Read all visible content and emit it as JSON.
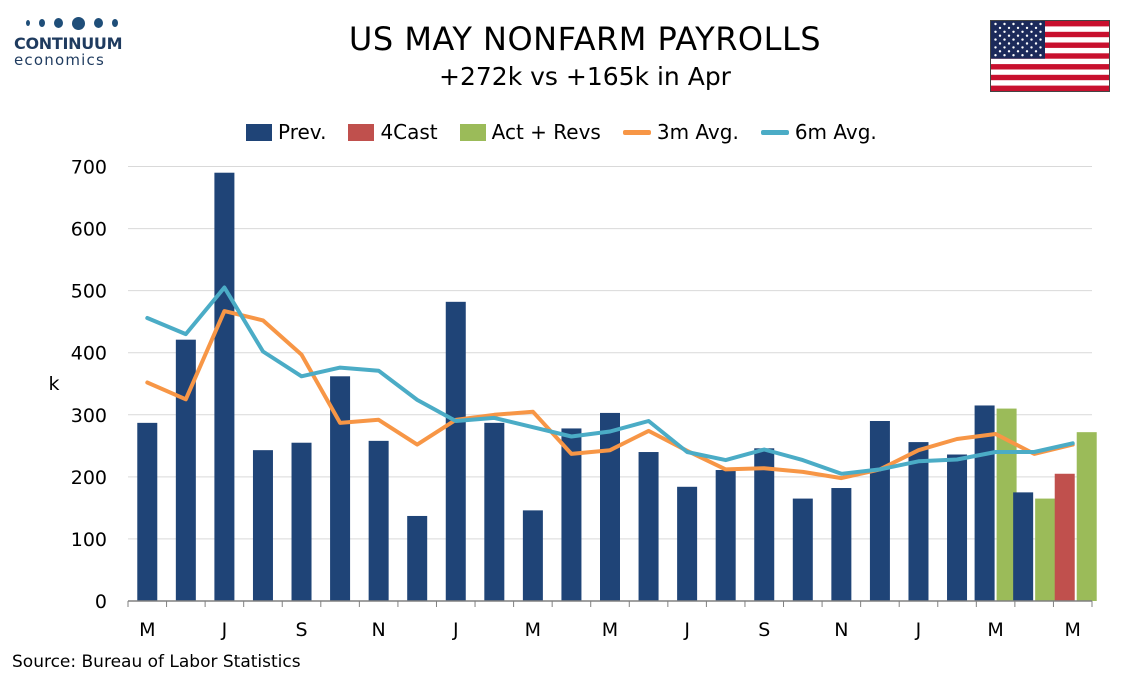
{
  "header": {
    "title": "US MAY NONFARM PAYROLLS",
    "subtitle": "+272k vs +165k in Apr"
  },
  "logo": {
    "name": "CONTINUUM",
    "sub": "economics",
    "color": "#1f3b5f"
  },
  "flag": {
    "icon": "us-flag-icon"
  },
  "source": "Source: Bureau of Labor Statistics",
  "colors": {
    "prev": "#1f4477",
    "forecast": "#c0504d",
    "actual": "#9bbb59",
    "avg3m": "#f79646",
    "avg6m": "#4bacc6",
    "grid": "#d9d9d9"
  },
  "chart_data": {
    "type": "bar",
    "ylabel": "k",
    "ylim": [
      0,
      700
    ],
    "yticks": [
      0,
      100,
      200,
      300,
      400,
      500,
      600,
      700
    ],
    "grid": true,
    "legend_placement": "top",
    "x_tick_labels": [
      "M",
      "J",
      "S",
      "N",
      "J",
      "M",
      "M",
      "J",
      "S",
      "N",
      "J",
      "M",
      "M"
    ],
    "legend": [
      "Prev.",
      "4Cast",
      "Act + Revs",
      "3m Avg.",
      "6m Avg."
    ],
    "series": [
      {
        "name": "Prev.",
        "kind": "bar",
        "values": [
          287,
          421,
          690,
          243,
          255,
          362,
          258,
          137,
          482,
          287,
          146,
          278,
          303,
          240,
          184,
          211,
          246,
          165,
          182,
          290,
          256,
          236,
          315,
          175,
          null
        ]
      },
      {
        "name": "Act + Revs",
        "kind": "bar",
        "values": [
          null,
          null,
          null,
          null,
          null,
          null,
          null,
          null,
          null,
          null,
          null,
          null,
          null,
          null,
          null,
          null,
          null,
          null,
          null,
          null,
          null,
          null,
          310,
          165,
          272
        ]
      },
      {
        "name": "4Cast",
        "kind": "bar",
        "values": [
          null,
          null,
          null,
          null,
          null,
          null,
          null,
          null,
          null,
          null,
          null,
          null,
          null,
          null,
          null,
          null,
          null,
          null,
          null,
          null,
          null,
          null,
          null,
          null,
          205
        ]
      },
      {
        "name": "3m Avg.",
        "kind": "line",
        "values": [
          352,
          325,
          467,
          452,
          397,
          287,
          292,
          252,
          292,
          300,
          305,
          237,
          243,
          274,
          242,
          212,
          214,
          208,
          198,
          212,
          243,
          261,
          269,
          237,
          252
        ]
      },
      {
        "name": "6m Avg.",
        "kind": "line",
        "values": [
          456,
          430,
          505,
          402,
          362,
          376,
          371,
          324,
          290,
          295,
          280,
          265,
          273,
          290,
          240,
          227,
          244,
          227,
          205,
          212,
          225,
          228,
          240,
          240,
          254
        ]
      }
    ]
  }
}
